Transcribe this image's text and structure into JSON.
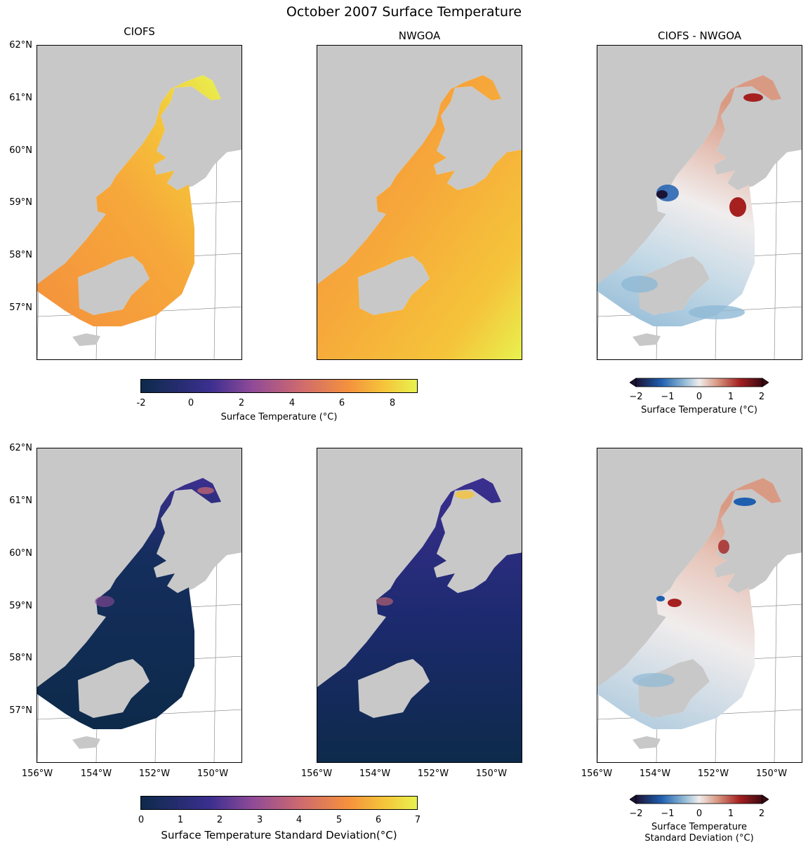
{
  "figure": {
    "title": "October 2007 Surface Temperature",
    "panel_titles": [
      "CIOFS",
      "NWGOA",
      "CIOFS - NWGOA"
    ],
    "lat_labels": [
      "62°N",
      "61°N",
      "60°N",
      "59°N",
      "58°N",
      "57°N"
    ],
    "lon_labels": [
      "156°W",
      "154°W",
      "152°W",
      "150°W"
    ],
    "colors": {
      "land": "#c8c8c8",
      "thermal": [
        "#0d2a4a",
        "#3b2f8f",
        "#8e4a98",
        "#cf6a6e",
        "#f4913d",
        "#f5c43a",
        "#e8f24f"
      ],
      "balance": [
        "#1a1333",
        "#1f5fb0",
        "#8fb9d6",
        "#f1eded",
        "#d99a84",
        "#a62020",
        "#3c0912"
      ]
    }
  },
  "colorbars": {
    "temp": {
      "label": "Surface Temperature (°C)",
      "ticks": [
        "-2",
        "0",
        "2",
        "4",
        "6",
        "8"
      ]
    },
    "temp_diff": {
      "label": "Surface Temperature (°C)",
      "ticks": [
        "−2",
        "−1",
        "0",
        "1",
        "2"
      ]
    },
    "std": {
      "label": "Surface Temperature Standard Deviation(°C)",
      "ticks": [
        "0",
        "1",
        "2",
        "3",
        "4",
        "5",
        "6",
        "7"
      ]
    },
    "std_diff": {
      "label_line1": "Surface Temperature",
      "label_line2": "Standard Deviation (°C)",
      "ticks": [
        "−2",
        "−1",
        "0",
        "1",
        "2"
      ]
    }
  },
  "chart_data": [
    {
      "type": "heatmap",
      "title": "CIOFS",
      "variable": "Surface Temperature (°C)",
      "colorbar_range": [
        -2,
        9
      ],
      "typical_range": [
        5,
        9
      ],
      "lat_range": [
        56,
        62
      ],
      "lon_range": [
        -156,
        -149
      ]
    },
    {
      "type": "heatmap",
      "title": "NWGOA",
      "variable": "Surface Temperature (°C)",
      "colorbar_range": [
        -2,
        9
      ],
      "typical_range": [
        5,
        9
      ],
      "lat_range": [
        56,
        62
      ],
      "lon_range": [
        -156,
        -149
      ]
    },
    {
      "type": "heatmap",
      "title": "CIOFS - NWGOA",
      "variable": "Surface Temperature (°C)",
      "colorbar_range": [
        -2,
        2
      ],
      "lat_range": [
        56,
        62
      ],
      "lon_range": [
        -156,
        -149
      ]
    },
    {
      "type": "heatmap",
      "title": "",
      "variable": "Surface Temperature Standard Deviation(°C)",
      "colorbar_range": [
        0,
        7
      ],
      "typical_range": [
        0,
        1.5
      ],
      "lat_range": [
        56,
        62
      ],
      "lon_range": [
        -156,
        -149
      ]
    },
    {
      "type": "heatmap",
      "title": "",
      "variable": "Surface Temperature Standard Deviation(°C)",
      "colorbar_range": [
        0,
        7
      ],
      "typical_range": [
        0,
        1
      ],
      "lat_range": [
        56,
        62
      ],
      "lon_range": [
        -156,
        -149
      ]
    },
    {
      "type": "heatmap",
      "title": "",
      "variable": "Surface Temperature Standard Deviation (°C)",
      "colorbar_range": [
        -2,
        2
      ],
      "lat_range": [
        56,
        62
      ],
      "lon_range": [
        -156,
        -149
      ]
    }
  ]
}
